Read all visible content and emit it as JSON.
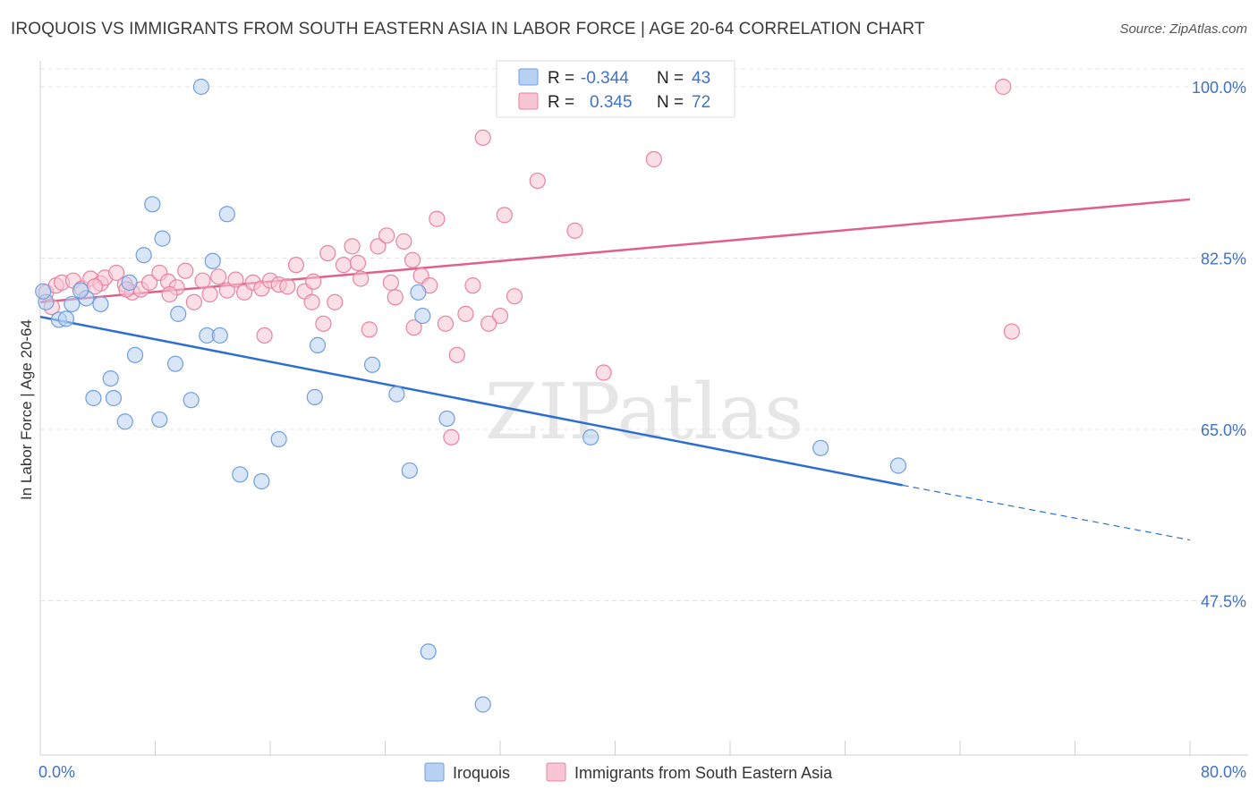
{
  "title": "IROQUOIS VS IMMIGRANTS FROM SOUTH EASTERN ASIA IN LABOR FORCE | AGE 20-64 CORRELATION CHART",
  "source": "Source: ZipAtlas.com",
  "watermark": "ZIPatlas",
  "colors": {
    "iroquois_fill": "#b8d1f2",
    "iroquois_stroke": "#6f9ee0",
    "iroquois_line": "#2c6fd1",
    "sea_fill": "#f7c5d4",
    "sea_stroke": "#e8839f",
    "sea_line": "#e0608a",
    "tick_label": "#3f72c8",
    "grid": "#e4e4e4"
  },
  "stats": {
    "r_label": "R =",
    "n_label": "N =",
    "series": [
      {
        "r": "-0.344",
        "n": "43"
      },
      {
        "r": "0.345",
        "n": "72"
      }
    ]
  },
  "chart_data": {
    "type": "scatter",
    "title": "IROQUOIS VS IMMIGRANTS FROM SOUTH EASTERN ASIA IN LABOR FORCE | AGE 20-64 CORRELATION CHART",
    "xlabel": "",
    "ylabel": "In Labor Force | Age 20-64",
    "xlim": [
      0,
      80
    ],
    "ylim": [
      31,
      103
    ],
    "x_tick_labels": [
      "0.0%",
      "80.0%"
    ],
    "y_ticks": [
      47.5,
      65.0,
      82.5,
      100.0
    ],
    "y_tick_labels": [
      "47.5%",
      "65.0%",
      "82.5%",
      "100.0%"
    ],
    "grid": "horizontal dashed",
    "legend_placement": "bottom-center",
    "series": [
      {
        "name": "Iroquois",
        "trend": {
          "x0": 0,
          "y0": 76.5,
          "x1": 60,
          "y1": 59.3,
          "x_dashed_end": 80,
          "y_dashed_end": 53.7
        },
        "points": [
          [
            0.4,
            78.0
          ],
          [
            1.3,
            76.2
          ],
          [
            1.8,
            76.3
          ],
          [
            2.2,
            77.8
          ],
          [
            3.2,
            78.4
          ],
          [
            4.2,
            77.8
          ],
          [
            6.2,
            80.0
          ],
          [
            11.2,
            100.0
          ],
          [
            7.8,
            88.0
          ],
          [
            8.5,
            84.5
          ],
          [
            7.2,
            82.8
          ],
          [
            13.0,
            87.0
          ],
          [
            12.0,
            82.2
          ],
          [
            9.6,
            76.8
          ],
          [
            11.6,
            74.6
          ],
          [
            12.5,
            74.6
          ],
          [
            6.6,
            72.6
          ],
          [
            9.4,
            71.7
          ],
          [
            4.9,
            70.2
          ],
          [
            3.7,
            68.2
          ],
          [
            5.1,
            68.2
          ],
          [
            10.5,
            68.0
          ],
          [
            5.9,
            65.8
          ],
          [
            8.3,
            66.0
          ],
          [
            16.6,
            64.0
          ],
          [
            13.9,
            60.4
          ],
          [
            15.4,
            59.7
          ],
          [
            19.3,
            73.6
          ],
          [
            19.1,
            68.3
          ],
          [
            23.1,
            71.6
          ],
          [
            24.8,
            68.6
          ],
          [
            26.3,
            79.0
          ],
          [
            26.6,
            76.6
          ],
          [
            28.3,
            66.1
          ],
          [
            25.7,
            60.8
          ],
          [
            27.0,
            42.3
          ],
          [
            30.8,
            36.9
          ],
          [
            38.3,
            64.2
          ],
          [
            54.3,
            63.1
          ],
          [
            59.7,
            61.3
          ],
          [
            37.9,
            100.0
          ],
          [
            0.2,
            79.1
          ],
          [
            2.8,
            79.2
          ]
        ]
      },
      {
        "name": "Immigrants from South Eastern Asia",
        "trend": {
          "x0": 0,
          "y0": 78.0,
          "x1": 80,
          "y1": 88.5
        },
        "points": [
          [
            0.4,
            79.0
          ],
          [
            1.1,
            79.7
          ],
          [
            1.5,
            80.0
          ],
          [
            2.3,
            80.2
          ],
          [
            2.9,
            79.4
          ],
          [
            3.5,
            80.4
          ],
          [
            4.2,
            79.9
          ],
          [
            4.5,
            80.5
          ],
          [
            5.3,
            81.0
          ],
          [
            5.9,
            79.8
          ],
          [
            6.4,
            79.0
          ],
          [
            7.0,
            79.3
          ],
          [
            7.6,
            80.0
          ],
          [
            8.3,
            81.0
          ],
          [
            8.9,
            80.1
          ],
          [
            9.5,
            79.5
          ],
          [
            10.1,
            81.2
          ],
          [
            10.7,
            78.0
          ],
          [
            11.3,
            80.2
          ],
          [
            11.8,
            78.8
          ],
          [
            12.4,
            80.6
          ],
          [
            13.0,
            79.2
          ],
          [
            13.6,
            80.3
          ],
          [
            14.2,
            79.0
          ],
          [
            14.8,
            80.0
          ],
          [
            15.4,
            79.4
          ],
          [
            16.0,
            80.2
          ],
          [
            16.6,
            79.8
          ],
          [
            17.2,
            79.6
          ],
          [
            17.8,
            81.8
          ],
          [
            18.4,
            79.1
          ],
          [
            19.0,
            80.1
          ],
          [
            19.7,
            75.8
          ],
          [
            20.5,
            78.0
          ],
          [
            21.1,
            81.8
          ],
          [
            21.7,
            83.7
          ],
          [
            22.3,
            80.4
          ],
          [
            22.9,
            75.2
          ],
          [
            23.5,
            83.7
          ],
          [
            24.1,
            84.8
          ],
          [
            24.7,
            78.5
          ],
          [
            25.3,
            84.2
          ],
          [
            25.9,
            82.3
          ],
          [
            26.5,
            80.7
          ],
          [
            27.1,
            79.7
          ],
          [
            27.6,
            86.5
          ],
          [
            28.2,
            75.8
          ],
          [
            29.0,
            72.6
          ],
          [
            29.6,
            76.8
          ],
          [
            30.1,
            79.7
          ],
          [
            30.8,
            94.8
          ],
          [
            32.0,
            76.6
          ],
          [
            32.3,
            86.9
          ],
          [
            33.0,
            78.6
          ],
          [
            34.6,
            90.4
          ],
          [
            37.2,
            85.3
          ],
          [
            42.7,
            92.6
          ],
          [
            67.0,
            100.0
          ],
          [
            67.6,
            75.0
          ],
          [
            28.6,
            64.2
          ],
          [
            39.2,
            70.8
          ],
          [
            15.6,
            74.6
          ],
          [
            18.9,
            78.0
          ],
          [
            20.0,
            83.0
          ],
          [
            22.1,
            82.0
          ],
          [
            24.4,
            80.0
          ],
          [
            26.0,
            75.4
          ],
          [
            31.2,
            75.8
          ],
          [
            9.0,
            78.8
          ],
          [
            6.0,
            79.3
          ],
          [
            0.8,
            77.5
          ],
          [
            3.8,
            79.6
          ]
        ]
      }
    ]
  }
}
